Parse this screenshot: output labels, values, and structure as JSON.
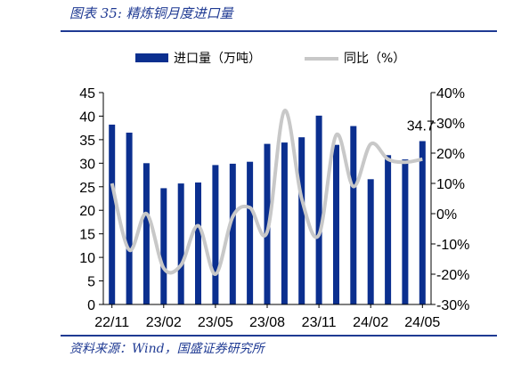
{
  "header": {
    "title": "图表 35:  精炼铜月度进口量"
  },
  "footer": {
    "source": "资料来源：Wind，国盛证券研究所"
  },
  "colors": {
    "bar": "#0b2f8f",
    "line": "#c8c8c8",
    "rule": "#1f3a93"
  },
  "chart_data": {
    "type": "bar",
    "categories": [
      "22/11",
      "22/12",
      "23/01",
      "23/02",
      "23/03",
      "23/04",
      "23/05",
      "23/06",
      "23/07",
      "23/08",
      "23/09",
      "23/10",
      "23/11",
      "23/12",
      "24/01",
      "24/02",
      "24/03",
      "24/04",
      "24/05"
    ],
    "x_tick_labels": [
      "22/11",
      "23/02",
      "23/05",
      "23/08",
      "23/11",
      "24/02",
      "24/05"
    ],
    "series": [
      {
        "name": "进口量（万吨）",
        "type": "bar",
        "axis": "left",
        "values": [
          38.2,
          36.5,
          30.0,
          24.7,
          25.7,
          25.9,
          29.6,
          29.9,
          30.3,
          34.1,
          34.4,
          35.5,
          40.1,
          33.9,
          37.9,
          26.6,
          31.7,
          30.8,
          34.7
        ]
      },
      {
        "name": "同比（%）",
        "type": "line",
        "axis": "right",
        "values": [
          10,
          -12,
          0,
          -18,
          -17,
          -4,
          -20,
          -1,
          2,
          -6,
          34,
          5,
          -7,
          26,
          9,
          23,
          18,
          17,
          18
        ]
      }
    ],
    "ylim_left": [
      0,
      45
    ],
    "yticks_left": [
      "0",
      "5",
      "10",
      "15",
      "20",
      "25",
      "30",
      "35",
      "40",
      "45"
    ],
    "ylim_right": [
      -30,
      40
    ],
    "yticks_right": [
      "-30%",
      "-20%",
      "-10%",
      "0%",
      "10%",
      "20%",
      "30%",
      "40%"
    ],
    "annotation": {
      "text": "34.7",
      "category": "24/05"
    },
    "legend_position": "top",
    "grid": false
  }
}
